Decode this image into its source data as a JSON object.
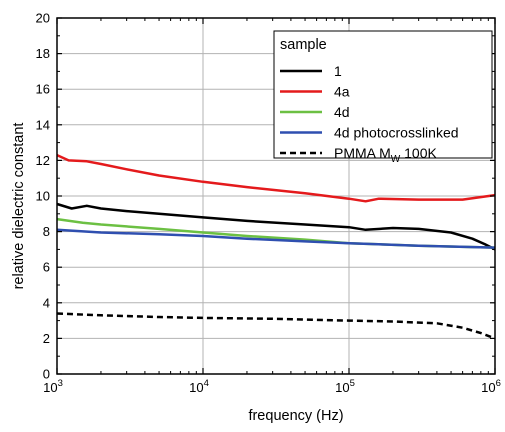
{
  "chart_data": {
    "type": "line",
    "xlabel": "frequency (Hz)",
    "ylabel": "relative dielectric constant",
    "xscale": "log",
    "xlim": [
      1000,
      1000000
    ],
    "ylim": [
      0,
      20
    ],
    "y_ticks": [
      0,
      2,
      4,
      6,
      8,
      10,
      12,
      14,
      16,
      18,
      20
    ],
    "x_ticks": [
      {
        "value": 1000,
        "base": "10",
        "exp": "3"
      },
      {
        "value": 10000,
        "base": "10",
        "exp": "4"
      },
      {
        "value": 100000,
        "base": "10",
        "exp": "5"
      },
      {
        "value": 1000000,
        "base": "10",
        "exp": "6"
      }
    ],
    "grid": true,
    "legend": {
      "title": "sample",
      "placement": "top-right"
    },
    "series": [
      {
        "name": "1",
        "color": "#000000",
        "style": "solid",
        "points": [
          [
            1000,
            9.55
          ],
          [
            1260,
            9.3
          ],
          [
            1600,
            9.45
          ],
          [
            2000,
            9.3
          ],
          [
            3000,
            9.15
          ],
          [
            5000,
            9.0
          ],
          [
            10000,
            8.8
          ],
          [
            20000,
            8.6
          ],
          [
            50000,
            8.4
          ],
          [
            100000,
            8.25
          ],
          [
            130000,
            8.1
          ],
          [
            200000,
            8.2
          ],
          [
            300000,
            8.15
          ],
          [
            500000,
            7.95
          ],
          [
            700000,
            7.6
          ],
          [
            850000,
            7.3
          ],
          [
            1000000,
            7.0
          ]
        ]
      },
      {
        "name": "4a",
        "color": "#e41a1c",
        "style": "solid",
        "points": [
          [
            1000,
            12.3
          ],
          [
            1200,
            12.0
          ],
          [
            1600,
            11.95
          ],
          [
            2000,
            11.8
          ],
          [
            3000,
            11.5
          ],
          [
            5000,
            11.15
          ],
          [
            10000,
            10.8
          ],
          [
            20000,
            10.5
          ],
          [
            50000,
            10.15
          ],
          [
            100000,
            9.85
          ],
          [
            130000,
            9.7
          ],
          [
            160000,
            9.85
          ],
          [
            300000,
            9.8
          ],
          [
            600000,
            9.8
          ],
          [
            1000000,
            10.05
          ]
        ]
      },
      {
        "name": "4d",
        "color": "#6cc043",
        "style": "solid",
        "points": [
          [
            1000,
            8.7
          ],
          [
            1500,
            8.5
          ],
          [
            2000,
            8.4
          ],
          [
            5000,
            8.15
          ],
          [
            10000,
            7.95
          ],
          [
            20000,
            7.75
          ],
          [
            50000,
            7.55
          ],
          [
            100000,
            7.35
          ],
          [
            300000,
            7.2
          ],
          [
            1000000,
            7.1
          ]
        ]
      },
      {
        "name": "4d photocrosslinked",
        "color": "#2f4fb0",
        "style": "solid",
        "points": [
          [
            1000,
            8.1
          ],
          [
            2000,
            7.95
          ],
          [
            5000,
            7.85
          ],
          [
            10000,
            7.75
          ],
          [
            20000,
            7.6
          ],
          [
            50000,
            7.45
          ],
          [
            100000,
            7.35
          ],
          [
            300000,
            7.2
          ],
          [
            1000000,
            7.1
          ]
        ]
      },
      {
        "name": "PMMA M_W 100K",
        "label_main": "PMMA M",
        "label_sub": "W",
        "label_tail": " 100K",
        "color": "#000000",
        "style": "dashed",
        "points": [
          [
            1000,
            3.4
          ],
          [
            2000,
            3.3
          ],
          [
            5000,
            3.2
          ],
          [
            10000,
            3.15
          ],
          [
            30000,
            3.1
          ],
          [
            100000,
            3.0
          ],
          [
            200000,
            2.95
          ],
          [
            400000,
            2.85
          ],
          [
            600000,
            2.6
          ],
          [
            800000,
            2.3
          ],
          [
            1000000,
            2.0
          ]
        ]
      }
    ]
  }
}
